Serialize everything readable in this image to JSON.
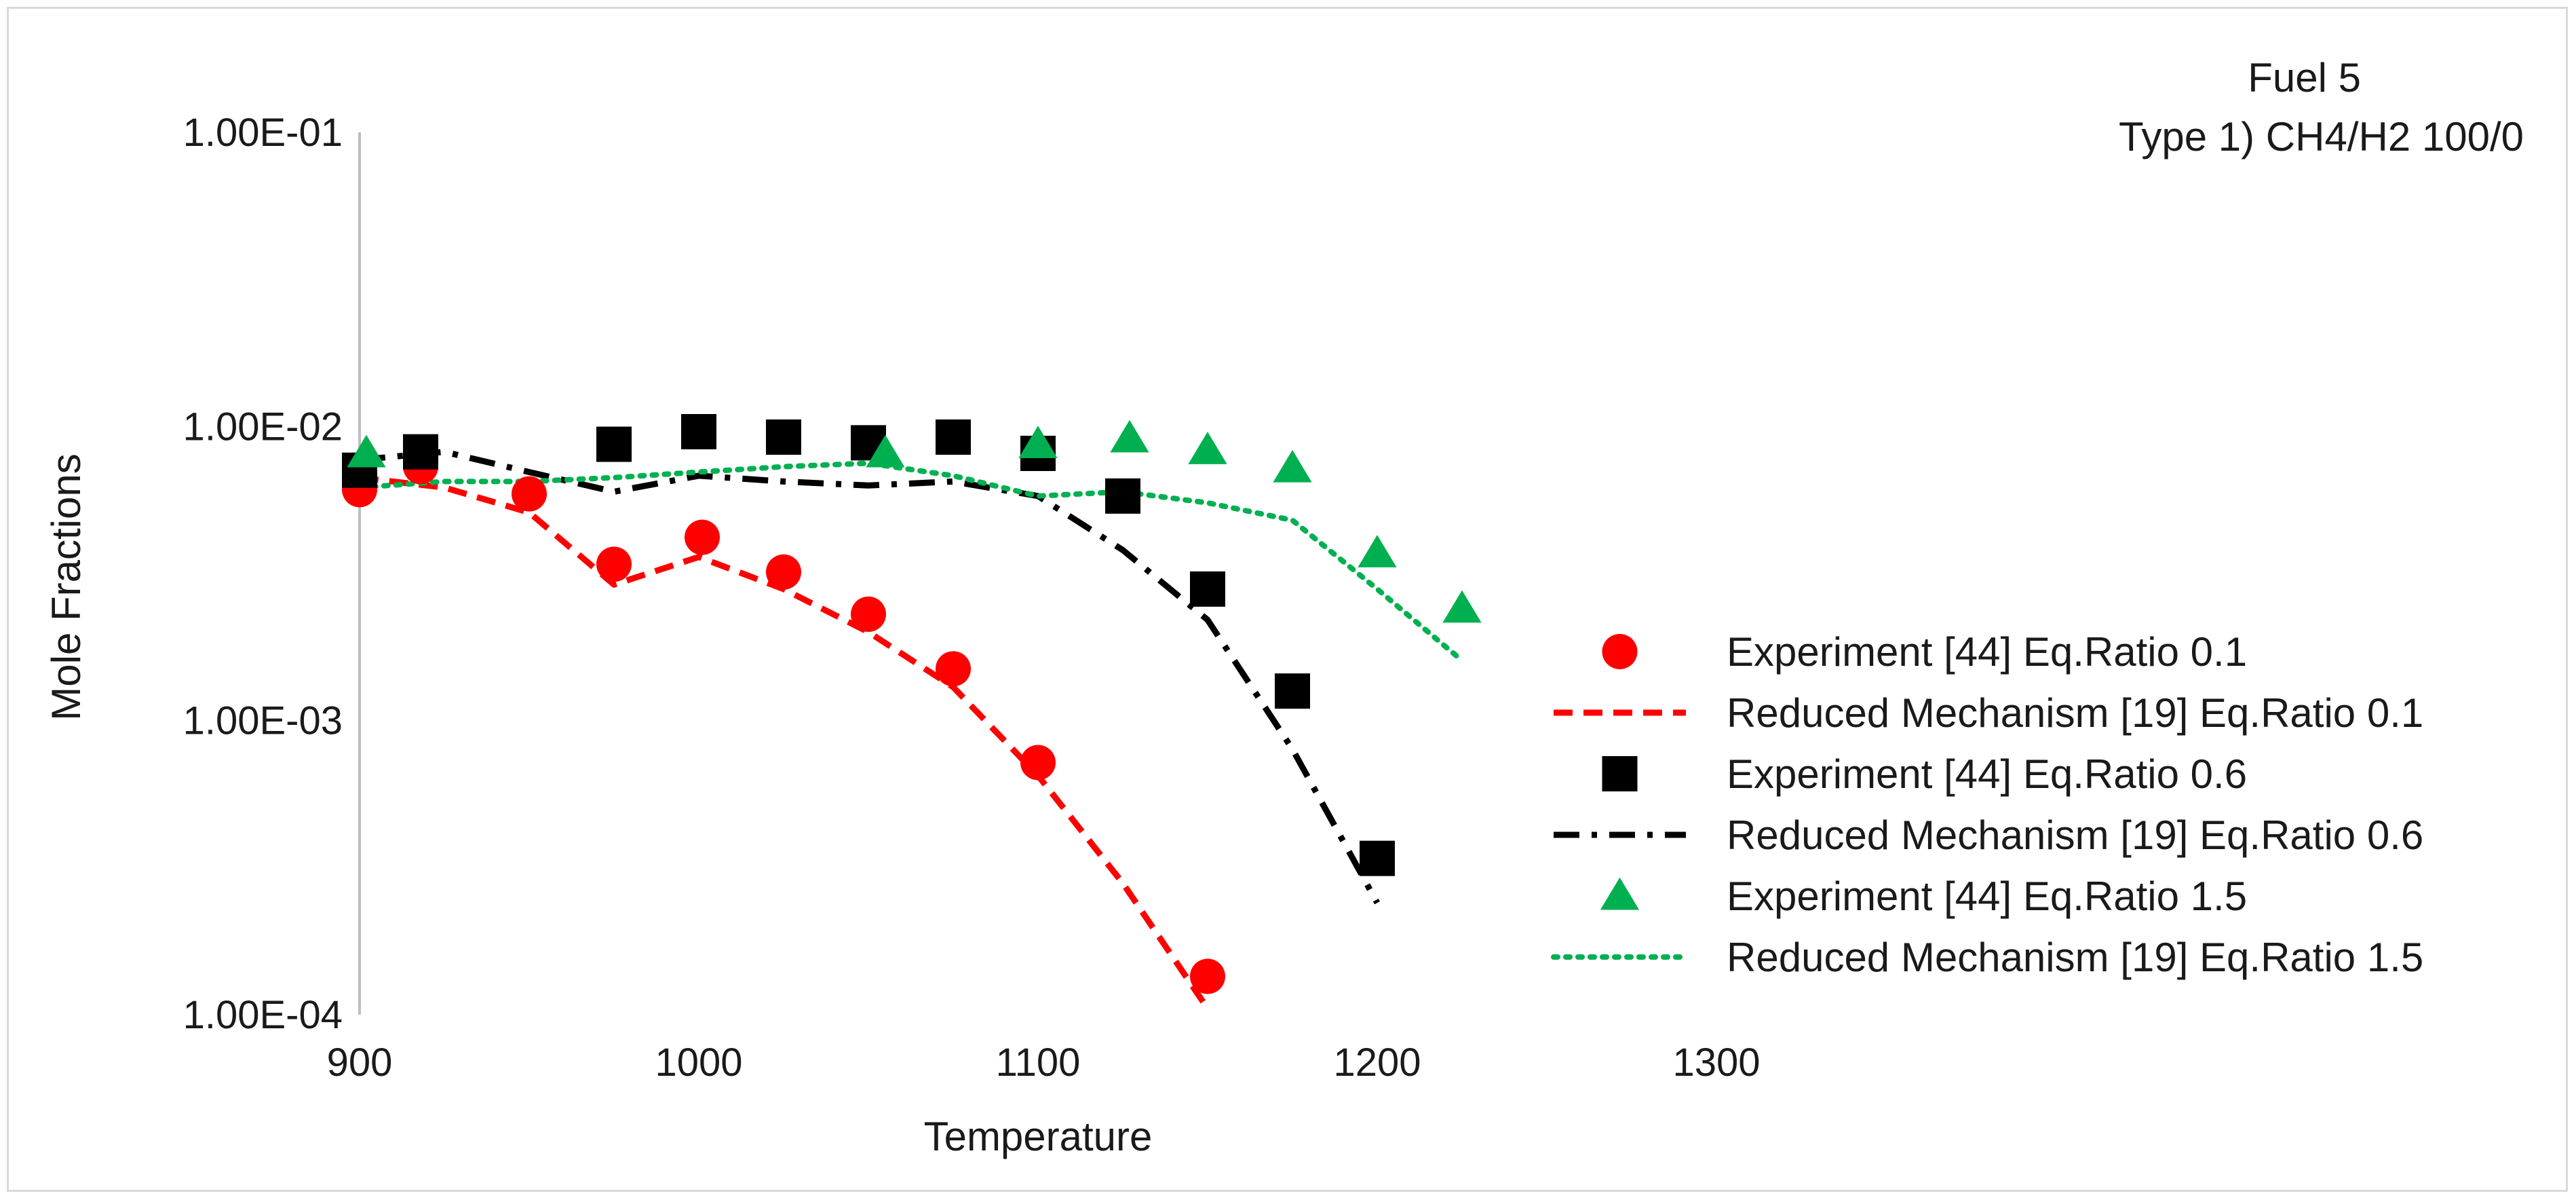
{
  "chart_data": {
    "type": "scatter",
    "title_lines": [
      "Fuel 5",
      "Type 1) CH4/H2 100/0"
    ],
    "xlabel": "Temperature",
    "ylabel": "Mole Fractions",
    "xlim": [
      900,
      1300
    ],
    "ylim": [
      0.0001,
      0.1
    ],
    "y_scale": "log",
    "x_ticks": [
      "900",
      "1000",
      "1100",
      "1200",
      "1300"
    ],
    "y_ticks": [
      "1.00E-04",
      "1.00E-03",
      "1.00E-02",
      "1.00E-01"
    ],
    "grid": false,
    "legend_position": "right",
    "series": [
      {
        "name": "Experiment [44] Eq.Ratio 0.1",
        "kind": "marker",
        "marker": "circle",
        "color": "#ff0000",
        "x": [
          900,
          918,
          950,
          975,
          1001,
          1025,
          1050,
          1075,
          1100,
          1150
        ],
        "y": [
          0.0061,
          0.0073,
          0.0059,
          0.0034,
          0.0042,
          0.0032,
          0.0023,
          0.0015,
          0.00072,
          0.000135
        ]
      },
      {
        "name": "Reduced Mechanism [19] Eq.Ratio 0.1",
        "kind": "line",
        "dash": "dashed",
        "color": "#ff0000",
        "x": [
          900,
          925,
          950,
          975,
          1000,
          1025,
          1050,
          1075,
          1100,
          1125,
          1150
        ],
        "y": [
          0.0067,
          0.0062,
          0.0051,
          0.0029,
          0.0036,
          0.0028,
          0.002,
          0.0013,
          0.00065,
          0.00028,
          0.000105
        ]
      },
      {
        "name": "Experiment [44] Eq.Ratio 0.6",
        "kind": "marker",
        "marker": "square",
        "color": "#000000",
        "x": [
          900,
          918,
          975,
          1000,
          1025,
          1050,
          1075,
          1100,
          1125,
          1150,
          1175,
          1200
        ],
        "y": [
          0.0071,
          0.0082,
          0.0087,
          0.0096,
          0.0092,
          0.0088,
          0.0092,
          0.0081,
          0.0058,
          0.0028,
          0.00126,
          0.00034
        ]
      },
      {
        "name": "Reduced Mechanism [19] Eq.Ratio 0.6",
        "kind": "line",
        "dash": "dash-dot",
        "color": "#000000",
        "x": [
          900,
          925,
          950,
          975,
          1000,
          1025,
          1050,
          1075,
          1100,
          1125,
          1150,
          1175,
          1200
        ],
        "y": [
          0.0077,
          0.0082,
          0.007,
          0.006,
          0.0068,
          0.0065,
          0.0063,
          0.0065,
          0.0058,
          0.0038,
          0.0022,
          0.0008,
          0.00024
        ]
      },
      {
        "name": "Experiment [44] Eq.Ratio 1.5",
        "kind": "marker",
        "marker": "triangle",
        "color": "#00b050",
        "x": [
          902,
          1055,
          1100,
          1127,
          1150,
          1175,
          1200,
          1225
        ],
        "y": [
          0.0081,
          0.0081,
          0.0087,
          0.0091,
          0.0083,
          0.0072,
          0.0037,
          0.0024
        ]
      },
      {
        "name": "Reduced Mechanism [19] Eq.Ratio 1.5",
        "kind": "line",
        "dash": "dotted",
        "color": "#00b050",
        "x": [
          900,
          925,
          950,
          975,
          1000,
          1025,
          1050,
          1075,
          1100,
          1125,
          1150,
          1175,
          1200,
          1225
        ],
        "y": [
          0.0062,
          0.0065,
          0.0065,
          0.0067,
          0.007,
          0.0073,
          0.0075,
          0.0068,
          0.0058,
          0.006,
          0.0055,
          0.0048,
          0.0028,
          0.0016
        ]
      }
    ]
  }
}
